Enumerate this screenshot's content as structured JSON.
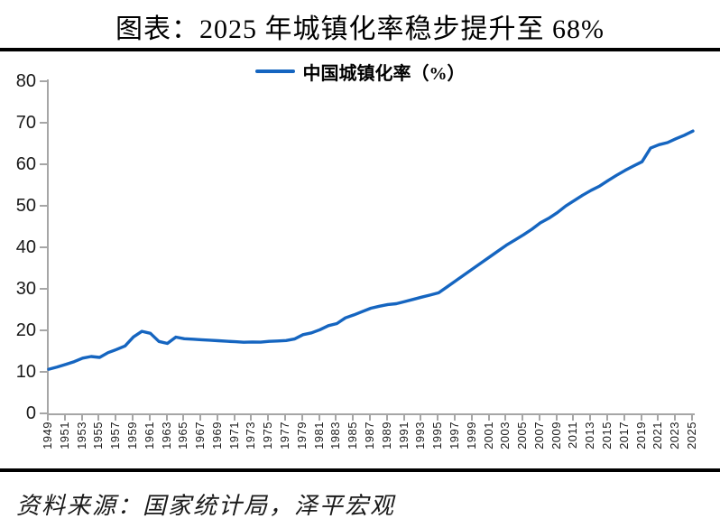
{
  "title": "图表：2025 年城镇化率稳步提升至 68%",
  "legend": {
    "label": "中国城镇化率（%）"
  },
  "source": "资料来源：国家统计局，泽平宏观",
  "colors": {
    "line": "#1565C0",
    "axis": "#A6A6A6",
    "rule": "#000000",
    "tick_text": "#1a1a1a"
  },
  "chart_data": {
    "type": "line",
    "title": "图表：2025 年城镇化率稳步提升至 68%",
    "legend_entries": [
      "中国城镇化率（%）"
    ],
    "legend_position": "top",
    "grid": false,
    "xlabel": "",
    "ylabel": "",
    "ylim": [
      0,
      80
    ],
    "y_ticks": [
      0,
      10,
      20,
      30,
      40,
      50,
      60,
      70,
      80
    ],
    "x_tick_labels": [
      "1949",
      "1951",
      "1953",
      "1955",
      "1957",
      "1959",
      "1961",
      "1963",
      "1965",
      "1967",
      "1969",
      "1971",
      "1973",
      "1975",
      "1977",
      "1979",
      "1981",
      "1983",
      "1985",
      "1987",
      "1989",
      "1991",
      "1993",
      "1995",
      "1997",
      "1999",
      "2001",
      "2003",
      "2005",
      "2007",
      "2009",
      "2011",
      "2013",
      "2015",
      "2017",
      "2019",
      "2021",
      "2023",
      "2025"
    ],
    "series": [
      {
        "name": "中国城镇化率（%）",
        "x": [
          1949,
          1950,
          1951,
          1952,
          1953,
          1954,
          1955,
          1956,
          1957,
          1958,
          1959,
          1960,
          1961,
          1962,
          1963,
          1964,
          1965,
          1966,
          1967,
          1968,
          1969,
          1970,
          1971,
          1972,
          1973,
          1974,
          1975,
          1976,
          1977,
          1978,
          1979,
          1980,
          1981,
          1982,
          1983,
          1984,
          1985,
          1986,
          1987,
          1988,
          1989,
          1990,
          1991,
          1992,
          1993,
          1994,
          1995,
          1996,
          1997,
          1998,
          1999,
          2000,
          2001,
          2002,
          2003,
          2004,
          2005,
          2006,
          2007,
          2008,
          2009,
          2010,
          2011,
          2012,
          2013,
          2014,
          2015,
          2016,
          2017,
          2018,
          2019,
          2020,
          2021,
          2022,
          2023,
          2024,
          2025
        ],
        "values": [
          10.64,
          11.18,
          11.78,
          12.46,
          13.31,
          13.69,
          13.48,
          14.62,
          15.39,
          16.25,
          18.41,
          19.75,
          19.29,
          17.33,
          16.84,
          18.37,
          17.98,
          17.86,
          17.74,
          17.62,
          17.5,
          17.38,
          17.26,
          17.13,
          17.2,
          17.16,
          17.34,
          17.44,
          17.55,
          17.92,
          18.96,
          19.39,
          20.16,
          21.13,
          21.62,
          23.01,
          23.71,
          24.52,
          25.32,
          25.81,
          26.21,
          26.41,
          26.94,
          27.46,
          27.99,
          28.51,
          29.04,
          30.48,
          31.91,
          33.35,
          34.78,
          36.22,
          37.66,
          39.09,
          40.53,
          41.76,
          42.99,
          44.34,
          45.89,
          46.99,
          48.34,
          49.95,
          51.27,
          52.57,
          53.73,
          54.77,
          56.1,
          57.35,
          58.52,
          59.58,
          60.6,
          63.89,
          64.72,
          65.22,
          66.16,
          67.0,
          68.0
        ]
      }
    ]
  }
}
